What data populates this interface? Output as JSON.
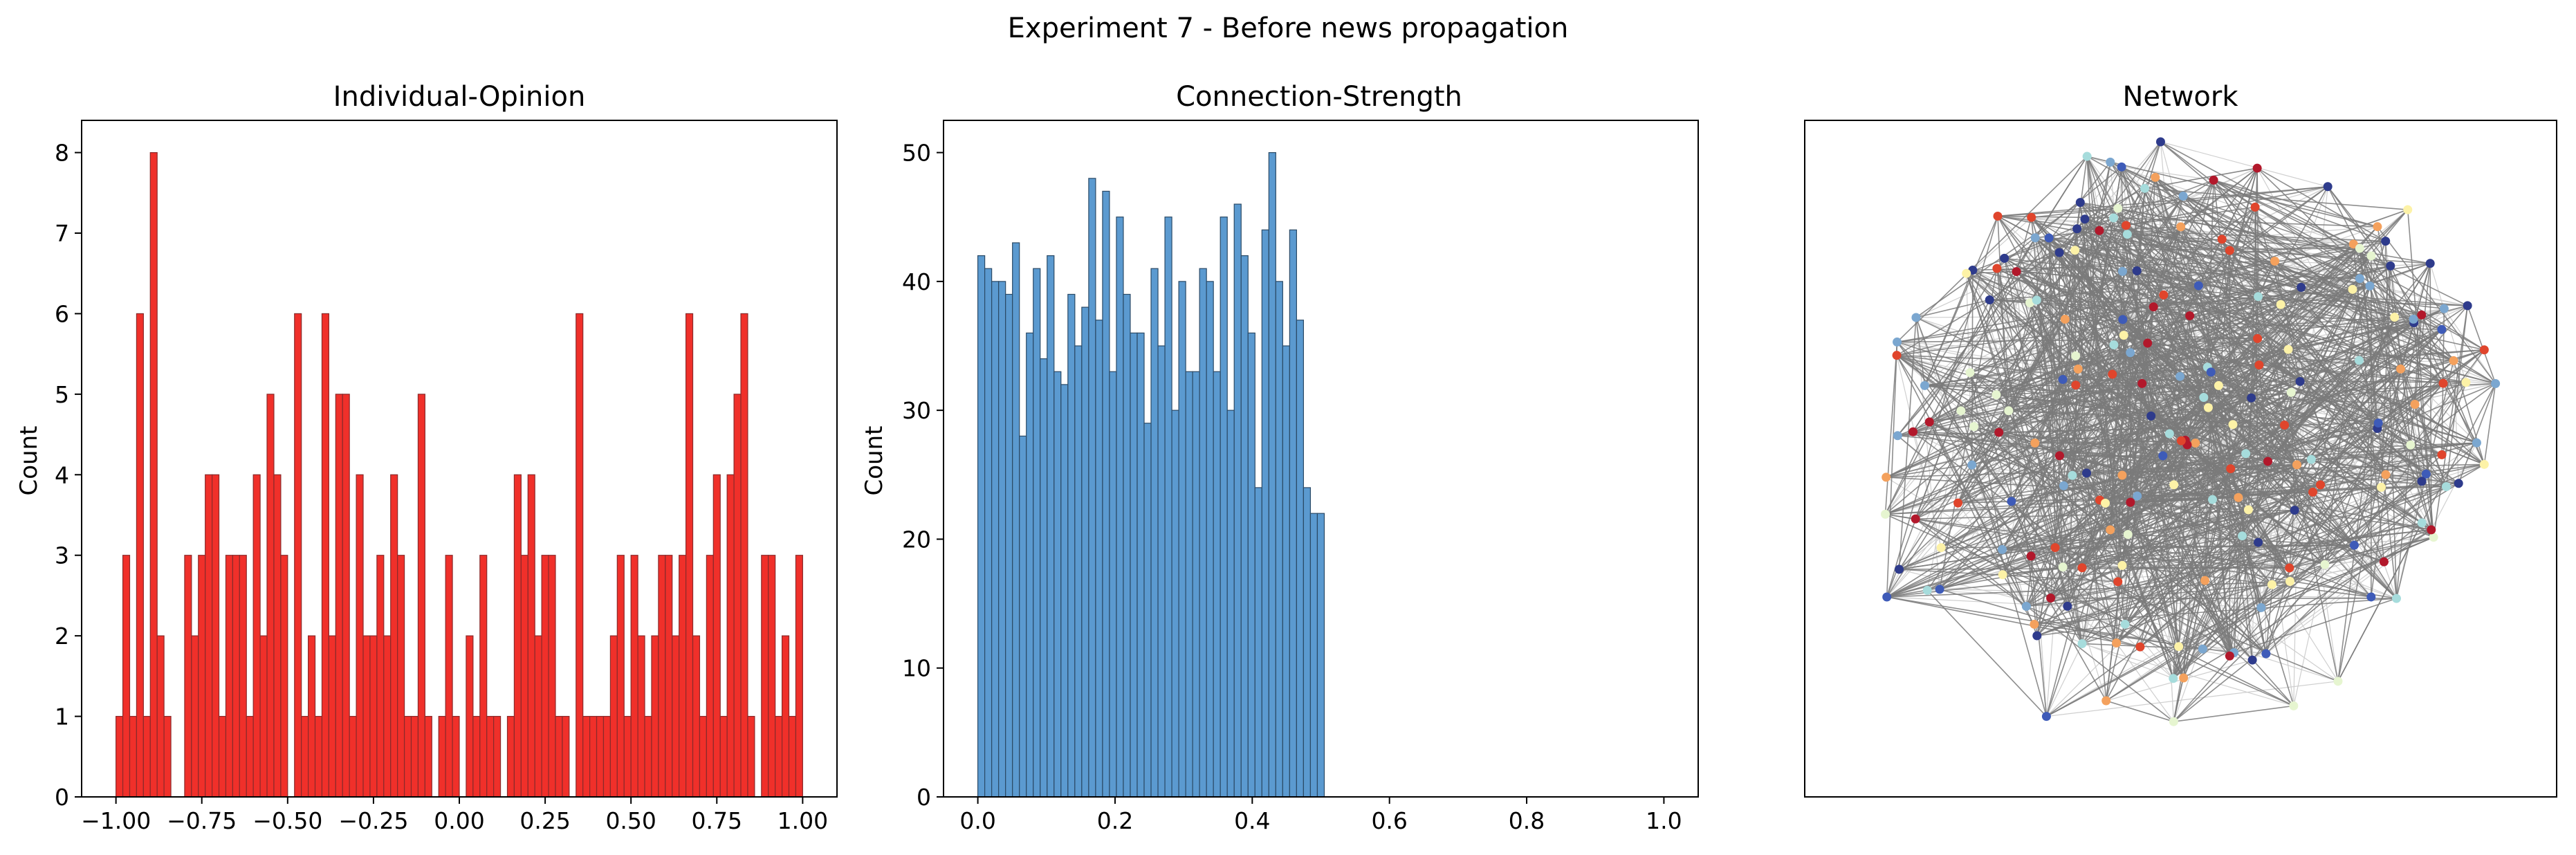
{
  "figure": {
    "suptitle": "Experiment 7 - Before news propagation"
  },
  "chart_data": [
    {
      "type": "bar",
      "subtype": "histogram",
      "title": "Individual-Opinion",
      "xlabel": "",
      "ylabel": "Count",
      "xlim": [
        -1.1,
        1.1
      ],
      "ylim": [
        0,
        8.4
      ],
      "xticks": [
        -1.0,
        -0.75,
        -0.5,
        -0.25,
        0.0,
        0.25,
        0.5,
        0.75,
        1.0
      ],
      "xtick_labels": [
        "−1.00",
        "−0.75",
        "−0.50",
        "−0.25",
        "0.00",
        "0.25",
        "0.50",
        "0.75",
        "1.00"
      ],
      "yticks": [
        0,
        1,
        2,
        3,
        4,
        5,
        6,
        7,
        8
      ],
      "ytick_labels": [
        "0",
        "1",
        "2",
        "3",
        "4",
        "5",
        "6",
        "7",
        "8"
      ],
      "bin_range": [
        -1.0,
        1.0
      ],
      "bins": 100,
      "color": "#f0302a",
      "edge_color": "#8a2a2a",
      "values": [
        1,
        3,
        1,
        6,
        1,
        8,
        2,
        1,
        0,
        0,
        3,
        2,
        3,
        4,
        4,
        1,
        3,
        3,
        3,
        1,
        4,
        2,
        5,
        4,
        3,
        0,
        6,
        1,
        2,
        1,
        6,
        2,
        5,
        5,
        1,
        4,
        2,
        2,
        3,
        2,
        4,
        3,
        1,
        1,
        5,
        1,
        0,
        1,
        3,
        1,
        0,
        2,
        1,
        3,
        1,
        1,
        0,
        1,
        4,
        3,
        4,
        2,
        3,
        3,
        1,
        1,
        0,
        6,
        1,
        1,
        1,
        1,
        2,
        3,
        1,
        3,
        2,
        1,
        2,
        3,
        3,
        2,
        3,
        6,
        2,
        1,
        3,
        4,
        1,
        4,
        5,
        6,
        1,
        0,
        3,
        3,
        1,
        2,
        1,
        3
      ]
    },
    {
      "type": "bar",
      "subtype": "histogram",
      "title": "Connection-Strength",
      "xlabel": "",
      "ylabel": "Count",
      "xlim": [
        -0.05,
        1.05
      ],
      "ylim": [
        0,
        52.5
      ],
      "xticks": [
        0.0,
        0.2,
        0.4,
        0.6,
        0.8,
        1.0
      ],
      "xtick_labels": [
        "0.0",
        "0.2",
        "0.4",
        "0.6",
        "0.8",
        "1.0"
      ],
      "yticks": [
        0,
        10,
        20,
        30,
        40,
        50
      ],
      "ytick_labels": [
        "0",
        "10",
        "20",
        "30",
        "40",
        "50"
      ],
      "bin_range": [
        0.0,
        0.505
      ],
      "bins": 50,
      "color": "#5b9ad0",
      "edge_color": "#2b4a66",
      "values": [
        42,
        41,
        40,
        40,
        39,
        43,
        28,
        36,
        41,
        34,
        42,
        33,
        32,
        39,
        35,
        38,
        48,
        37,
        47,
        33,
        45,
        39,
        36,
        36,
        29,
        41,
        35,
        45,
        30,
        40,
        33,
        33,
        41,
        40,
        33,
        45,
        30,
        46,
        42,
        36,
        24,
        44,
        50,
        40,
        35,
        44,
        37,
        24,
        22,
        22
      ]
    },
    {
      "type": "network",
      "title": "Network",
      "node_colors": [
        "#b2182b",
        "#e0452c",
        "#f4a15d",
        "#fdf2a7",
        "#e6f5d0",
        "#a6dcdc",
        "#7ba7d0",
        "#3e5bb8",
        "#2e3b8c"
      ],
      "edge_color": "#7a7a7a",
      "weak_edge_color": "#cfcfcf"
    }
  ]
}
